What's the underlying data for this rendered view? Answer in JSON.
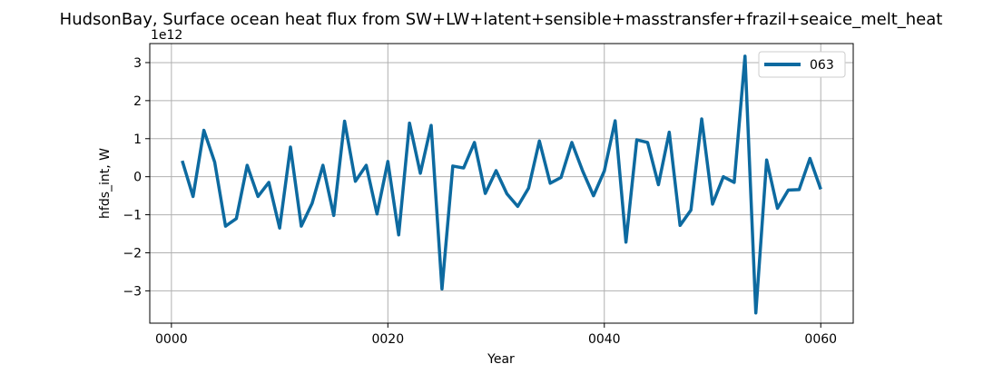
{
  "chart_data": {
    "type": "line",
    "title": "HudsonBay, Surface ocean heat flux from SW+LW+latent+sensible+masstransfer+frazil+seaice_melt_heat",
    "xlabel": "Year",
    "ylabel": "hfds_int, W",
    "y_offset_label": "1e12",
    "y_scale": 1000000000000.0,
    "xlim": [
      -2,
      63
    ],
    "ylim": [
      -3.85,
      3.5
    ],
    "grid": true,
    "legend_position": "upper right",
    "x_ticks": [
      0,
      20,
      40,
      60
    ],
    "x_tick_labels": [
      "0000",
      "0020",
      "0040",
      "0060"
    ],
    "y_ticks": [
      -3,
      -2,
      -1,
      0,
      1,
      2,
      3
    ],
    "y_tick_labels": [
      "−3",
      "−2",
      "−1",
      "0",
      "1",
      "2",
      "3"
    ],
    "series": [
      {
        "name": "063",
        "color": "#0d6aa0",
        "x": [
          1,
          2,
          3,
          4,
          5,
          6,
          7,
          8,
          9,
          10,
          11,
          12,
          13,
          14,
          15,
          16,
          17,
          18,
          19,
          20,
          21,
          22,
          23,
          24,
          25,
          26,
          27,
          28,
          29,
          30,
          31,
          32,
          33,
          34,
          35,
          36,
          37,
          38,
          39,
          40,
          41,
          42,
          43,
          44,
          45,
          46,
          47,
          48,
          49,
          50,
          51,
          52,
          53,
          54,
          55,
          56,
          57,
          58,
          59,
          60
        ],
        "values": [
          0.42,
          -0.52,
          1.22,
          0.38,
          -1.3,
          -1.1,
          0.3,
          -0.52,
          -0.15,
          -1.35,
          0.78,
          -1.3,
          -0.7,
          0.3,
          -1.02,
          1.46,
          -0.12,
          0.3,
          -0.98,
          0.4,
          -1.53,
          1.41,
          0.09,
          1.35,
          -2.95,
          0.28,
          0.23,
          0.9,
          -0.44,
          0.16,
          -0.45,
          -0.78,
          -0.3,
          0.94,
          -0.17,
          -0.02,
          0.9,
          0.15,
          -0.5,
          0.15,
          1.47,
          -1.72,
          0.97,
          0.9,
          -0.21,
          1.17,
          -1.28,
          -0.88,
          1.52,
          -0.72,
          0.0,
          -0.15,
          3.17,
          -3.58,
          0.44,
          -0.83,
          -0.35,
          -0.34,
          0.48,
          -0.33
        ]
      }
    ]
  }
}
